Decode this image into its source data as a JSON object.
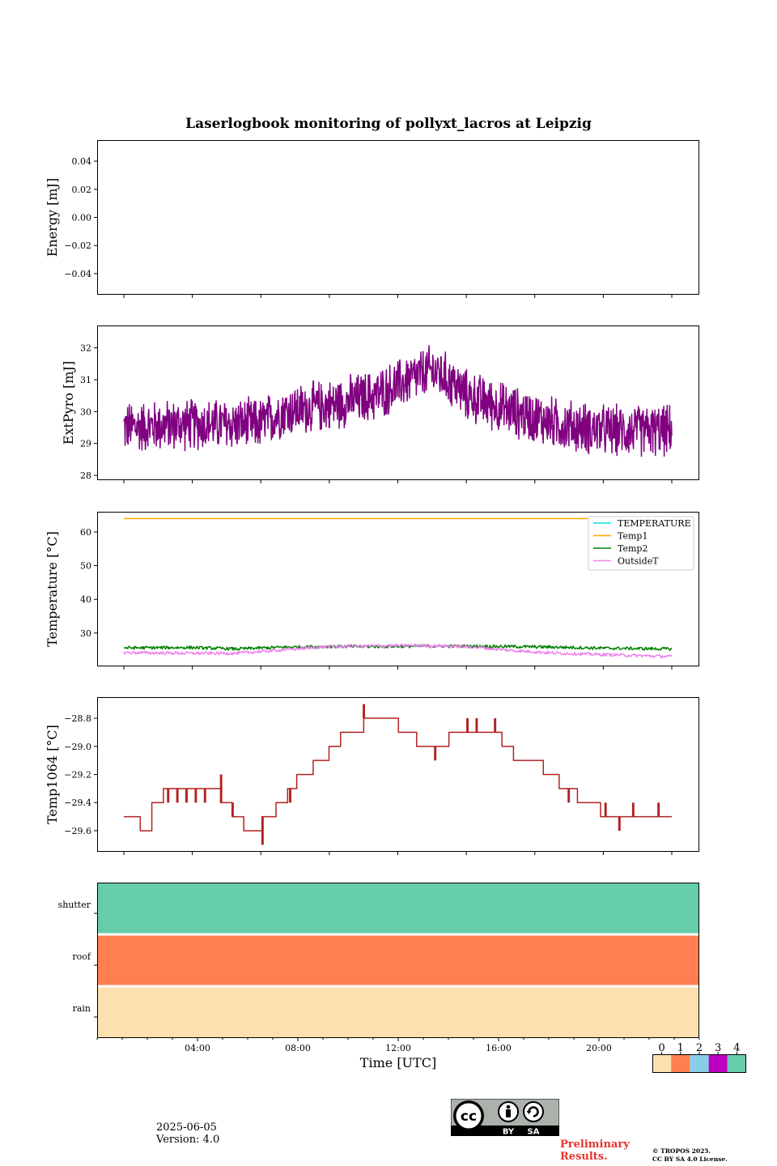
{
  "title": "Laserlogbook monitoring of pollyxt_lacros at Leipzig",
  "footer": {
    "date": "2025-06-05",
    "version": "Version: 4.0",
    "preliminary_line1": "Preliminary",
    "preliminary_line2": "Results.",
    "copyright_line1": "© TROPOS 2025.",
    "copyright_line2": "CC BY SA 4.0 License.",
    "license_badge": {
      "label_by": "BY",
      "label_sa": "SA",
      "label_cc": "cc"
    }
  },
  "chart_data": [
    {
      "type": "line",
      "ylabel": "Energy [mJ]",
      "ylim": [
        -0.055,
        0.055
      ],
      "yticks": [
        0.04,
        0.02,
        0.0,
        -0.02,
        -0.04
      ],
      "yticklabels": [
        "0.04",
        "0.02",
        "0.00",
        "−0.02",
        "−0.04"
      ],
      "series": []
    },
    {
      "type": "line",
      "ylabel": "ExtPyro [mJ]",
      "ylim": [
        27.85,
        32.7
      ],
      "yticks": [
        28,
        29,
        30,
        31,
        32
      ],
      "yticklabels": [
        "28",
        "29",
        "30",
        "31",
        "32"
      ],
      "series": [
        {
          "color": "#800080",
          "x_hours": [
            0.1,
            23.9
          ],
          "baseline": [
            [
              0.1,
              29.5
            ],
            [
              3.0,
              29.6
            ],
            [
              6.0,
              29.6
            ],
            [
              7.0,
              30.0
            ],
            [
              9.0,
              30.2
            ],
            [
              11.0,
              30.5
            ],
            [
              12.5,
              31.0
            ],
            [
              13.5,
              31.3
            ],
            [
              14.2,
              31.0
            ],
            [
              15.0,
              30.5
            ],
            [
              17.0,
              30.0
            ],
            [
              19.0,
              29.6
            ],
            [
              21.0,
              29.4
            ],
            [
              23.9,
              29.4
            ]
          ],
          "noise_amplitude": 0.9
        }
      ]
    },
    {
      "type": "line",
      "ylabel": "Temperature [°C]",
      "ylim": [
        20.1,
        66.0
      ],
      "yticks": [
        30,
        40,
        50,
        60
      ],
      "yticklabels": [
        "30",
        "40",
        "50",
        "60"
      ],
      "legend_position": "upper right",
      "series": [
        {
          "name": "TEMPERATURE",
          "color": "#00e5e5",
          "points": []
        },
        {
          "name": "Temp1",
          "color": "#ffa500",
          "points": [
            [
              0.1,
              64.0
            ],
            [
              23.9,
              64.0
            ]
          ]
        },
        {
          "name": "Temp2",
          "color": "#008000",
          "points": [
            [
              0.1,
              25.6
            ],
            [
              3.0,
              25.7
            ],
            [
              5.0,
              25.3
            ],
            [
              7.0,
              25.8
            ],
            [
              9.0,
              26.0
            ],
            [
              11.0,
              26.0
            ],
            [
              13.0,
              26.1
            ],
            [
              15.0,
              26.1
            ],
            [
              17.0,
              26.0
            ],
            [
              19.0,
              25.8
            ],
            [
              21.0,
              25.5
            ],
            [
              23.9,
              25.3
            ]
          ]
        },
        {
          "name": "OutsideT",
          "color": "#ee82ee",
          "points": [
            [
              0.1,
              24.2
            ],
            [
              3.0,
              24.0
            ],
            [
              5.0,
              24.0
            ],
            [
              7.0,
              25.0
            ],
            [
              9.0,
              26.0
            ],
            [
              11.0,
              26.2
            ],
            [
              13.0,
              26.3
            ],
            [
              15.0,
              26.0
            ],
            [
              17.0,
              24.8
            ],
            [
              19.0,
              24.0
            ],
            [
              21.0,
              23.6
            ],
            [
              23.9,
              23.0
            ]
          ]
        }
      ]
    },
    {
      "type": "line",
      "ylabel": "Temp1064 [°C]",
      "ylim": [
        -29.75,
        -28.65
      ],
      "yticks": [
        -28.8,
        -29.0,
        -29.2,
        -29.4,
        -29.6
      ],
      "yticklabels": [
        "−28.8",
        "−29.0",
        "−29.2",
        "−29.4",
        "−29.6"
      ],
      "series": [
        {
          "color": "#b22222",
          "steps": [
            [
              0.1,
              -29.5
            ],
            [
              0.8,
              -29.6
            ],
            [
              1.3,
              -29.4
            ],
            [
              1.8,
              -29.3
            ],
            [
              4.3,
              -29.4
            ],
            [
              4.8,
              -29.5
            ],
            [
              5.3,
              -29.6
            ],
            [
              6.1,
              -29.5
            ],
            [
              6.7,
              -29.4
            ],
            [
              7.2,
              -29.3
            ],
            [
              7.6,
              -29.2
            ],
            [
              8.3,
              -29.1
            ],
            [
              9.0,
              -29.0
            ],
            [
              9.5,
              -28.9
            ],
            [
              10.5,
              -28.8
            ],
            [
              12.0,
              -28.9
            ],
            [
              12.8,
              -29.0
            ],
            [
              13.6,
              -29.0
            ],
            [
              14.2,
              -28.9
            ],
            [
              16.5,
              -29.0
            ],
            [
              17.0,
              -29.1
            ],
            [
              18.3,
              -29.2
            ],
            [
              19.0,
              -29.3
            ],
            [
              19.8,
              -29.4
            ],
            [
              20.8,
              -29.5
            ],
            [
              23.9,
              -29.5
            ]
          ],
          "spikes": [
            [
              0.8,
              -29.6
            ],
            [
              1.2,
              -29.6
            ],
            [
              2.0,
              -29.4
            ],
            [
              2.4,
              -29.4
            ],
            [
              2.8,
              -29.4
            ],
            [
              3.2,
              -29.4
            ],
            [
              3.6,
              -29.4
            ],
            [
              4.3,
              -29.2
            ],
            [
              4.8,
              -29.4
            ],
            [
              6.1,
              -29.7
            ],
            [
              7.0,
              -29.4
            ],
            [
              7.3,
              -29.4
            ],
            [
              7.8,
              -29.2
            ],
            [
              8.4,
              -29.1
            ],
            [
              9.6,
              -28.9
            ],
            [
              10.5,
              -28.7
            ],
            [
              10.9,
              -28.8
            ],
            [
              11.5,
              -28.8
            ],
            [
              13.0,
              -29.0
            ],
            [
              13.6,
              -29.1
            ],
            [
              15.0,
              -28.8
            ],
            [
              15.4,
              -28.8
            ],
            [
              16.2,
              -28.8
            ],
            [
              16.8,
              -29.0
            ],
            [
              17.3,
              -29.1
            ],
            [
              18.5,
              -29.2
            ],
            [
              19.4,
              -29.4
            ],
            [
              21.0,
              -29.4
            ],
            [
              21.6,
              -29.6
            ],
            [
              22.2,
              -29.4
            ],
            [
              23.3,
              -29.4
            ]
          ]
        }
      ]
    },
    {
      "type": "heatmap",
      "xlabel": "Time [UTC]",
      "x_range_hours": [
        0,
        24
      ],
      "xticks_hours": [
        4,
        8,
        12,
        16,
        20
      ],
      "xticklabels": [
        "04:00",
        "08:00",
        "12:00",
        "16:00",
        "20:00"
      ],
      "rows": [
        {
          "name": "shutter",
          "value": 4
        },
        {
          "name": "roof",
          "value": 1
        },
        {
          "name": "rain",
          "value": 0
        }
      ],
      "colorbar": {
        "ticks": [
          "0",
          "1",
          "2",
          "3",
          "4"
        ],
        "colors": [
          "#fde0b0",
          "#ff7f50",
          "#87ceeb",
          "#c000c0",
          "#66cdaa"
        ]
      }
    }
  ]
}
